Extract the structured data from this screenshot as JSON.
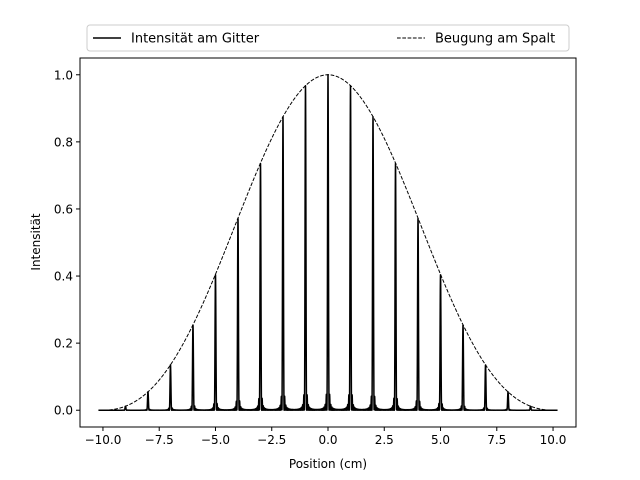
{
  "chart_data": {
    "type": "line",
    "title": "",
    "xlabel": "Position (cm)",
    "ylabel": "Intensität",
    "xlim": [
      -11.02,
      11.02
    ],
    "ylim": [
      -0.05,
      1.05
    ],
    "x_ticks": [
      -10.0,
      -7.5,
      -5.0,
      -2.5,
      0.0,
      2.5,
      5.0,
      7.5,
      10.0
    ],
    "x_tick_labels": [
      "−10.0",
      "−7.5",
      "−5.0",
      "−2.5",
      "0.0",
      "2.5",
      "5.0",
      "7.5",
      "10.0"
    ],
    "y_ticks": [
      0.0,
      0.2,
      0.4,
      0.6,
      0.8,
      1.0
    ],
    "y_tick_labels": [
      "0.0",
      "0.2",
      "0.4",
      "0.6",
      "0.8",
      "1.0"
    ],
    "grid": false,
    "legend": {
      "placement": "top, above plot",
      "columns": 2
    },
    "x_range": [
      -10.2,
      10.2
    ],
    "series": [
      {
        "name": "Intensität am Gitter",
        "style": "solid",
        "color": "#000000",
        "description_values": "peaks at integer positions",
        "peak_positions": [
          -10,
          -9,
          -8,
          -7,
          -6,
          -5,
          -4,
          -3,
          -2,
          -1,
          0,
          1,
          2,
          3,
          4,
          5,
          6,
          7,
          8,
          9,
          10
        ],
        "peak_heights": [
          0.0,
          0.01,
          0.055,
          0.135,
          0.255,
          0.405,
          0.573,
          0.735,
          0.873,
          0.967,
          1.0,
          0.967,
          0.873,
          0.735,
          0.573,
          0.405,
          0.255,
          0.135,
          0.055,
          0.01,
          0.0
        ],
        "grating_lines": 20,
        "slit_zero_position": 10.0
      },
      {
        "name": "Beugung am Spalt",
        "style": "dashed",
        "color": "#000000",
        "description_values": "sinc^2 envelope, first zero at ±10",
        "slit_zero_position": 10.0
      }
    ]
  }
}
